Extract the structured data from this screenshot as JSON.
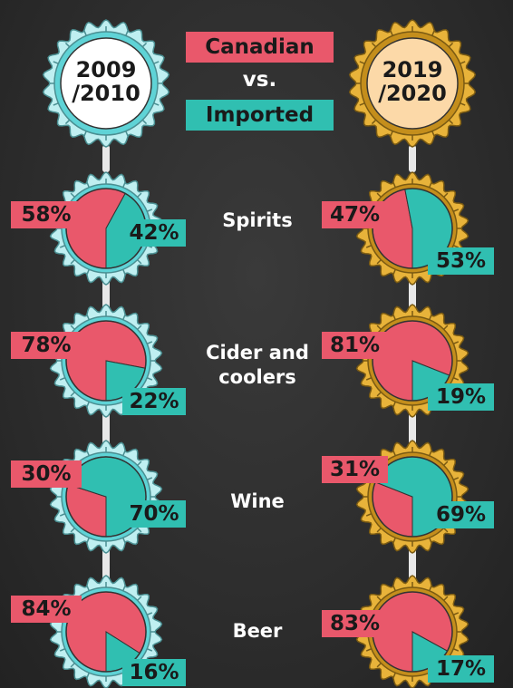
{
  "periods": [
    [
      "2009",
      "/2010"
    ],
    [
      "2019",
      "/2020"
    ]
  ],
  "legend": {
    "items": [
      {
        "name": "Canadian",
        "color": "#e9586b"
      },
      {
        "name": "Imported",
        "color": "#30bfb1"
      }
    ],
    "separator": "vs."
  },
  "categories": [
    "Spirits",
    "Cider and coolers",
    "Wine",
    "Beer"
  ],
  "chart_data": [
    {
      "type": "pie",
      "values": [
        58,
        42
      ],
      "value_labels": [
        "58%",
        "42%"
      ]
    },
    {
      "type": "pie",
      "values": [
        47,
        53
      ],
      "value_labels": [
        "47%",
        "53%"
      ]
    },
    {
      "type": "pie",
      "values": [
        78,
        22
      ],
      "value_labels": [
        "78%",
        "22%"
      ]
    },
    {
      "type": "pie",
      "values": [
        81,
        19
      ],
      "value_labels": [
        "81%",
        "19%"
      ]
    },
    {
      "type": "pie",
      "values": [
        30,
        70
      ],
      "value_labels": [
        "30%",
        "70%"
      ]
    },
    {
      "type": "pie",
      "values": [
        31,
        69
      ],
      "value_labels": [
        "31%",
        "69%"
      ]
    },
    {
      "type": "pie",
      "values": [
        84,
        16
      ],
      "value_labels": [
        "84%",
        "16%"
      ]
    },
    {
      "type": "pie",
      "values": [
        83,
        17
      ],
      "value_labels": [
        "83%",
        "17%"
      ]
    }
  ]
}
